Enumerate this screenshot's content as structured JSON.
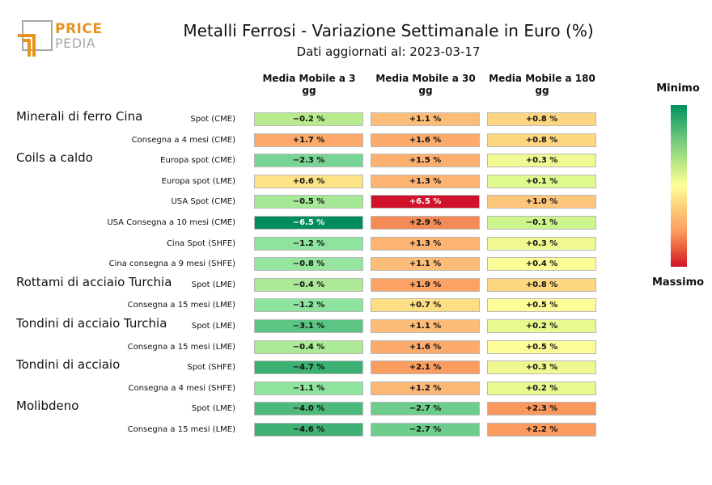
{
  "logo": {
    "word1": "PRICE",
    "word2": "PEDIA"
  },
  "chart_data": {
    "type": "table",
    "title": "Metalli Ferrosi - Variazione Settimanale in Euro (%)",
    "subtitle": "Dati aggiornati al: 2023-03-17",
    "columns": [
      "Media Mobile a 3 gg",
      "Media Mobile a 30 gg",
      "Media Mobile a 180 gg"
    ],
    "legend": {
      "top": "Minimo",
      "bottom": "Massimo"
    },
    "groups": [
      {
        "name": "Minerali di ferro Cina",
        "rows": [
          {
            "label": "Spot (CME)",
            "values": [
              "−0.2 %",
              "+1.1 %",
              "+0.8 %"
            ],
            "colors": [
              "#b8eb8e",
              "#fdbd78",
              "#fed67f"
            ]
          },
          {
            "label": "Consegna a 4 mesi (CME)",
            "values": [
              "+1.7 %",
              "+1.6 %",
              "+0.8 %"
            ],
            "colors": [
              "#fca96b",
              "#fcab6c",
              "#fed67f"
            ]
          }
        ]
      },
      {
        "name": "Coils a caldo",
        "rows": [
          {
            "label": "Europa spot (CME)",
            "values": [
              "−2.3 %",
              "+1.5 %",
              "+0.3 %"
            ],
            "colors": [
              "#78d495",
              "#fcb06e",
              "#f0f991"
            ]
          },
          {
            "label": "Europa spot (LME)",
            "values": [
              "+0.6 %",
              "+1.3 %",
              "+0.1 %"
            ],
            "colors": [
              "#fee386",
              "#fdb472",
              "#defa8f"
            ]
          },
          {
            "label": "USA Spot (CME)",
            "values": [
              "−0.5 %",
              "+6.5 %",
              "+1.0 %"
            ],
            "colors": [
              "#a5e997",
              "#d0132a",
              "#fec67b"
            ]
          },
          {
            "label": "USA Consegna a 10 mesi (CME)",
            "values": [
              "−6.5 %",
              "+2.9 %",
              "−0.1 %"
            ],
            "colors": [
              "#008c5c",
              "#f48b57",
              "#ccf58e"
            ]
          },
          {
            "label": "Cina Spot (SHFE)",
            "values": [
              "−1.2 %",
              "+1.3 %",
              "+0.3 %"
            ],
            "colors": [
              "#8ee39e",
              "#fdb472",
              "#f0f991"
            ]
          },
          {
            "label": "Cina consegna a 9 mesi (SHFE)",
            "values": [
              "−0.8 %",
              "+1.1 %",
              "+0.4 %"
            ],
            "colors": [
              "#96e59e",
              "#fdbd78",
              "#fbfd97"
            ]
          }
        ]
      },
      {
        "name": "Rottami di acciaio Turchia",
        "rows": [
          {
            "label": "Spot (LME)",
            "values": [
              "−0.4 %",
              "+1.9 %",
              "+0.8 %"
            ],
            "colors": [
              "#acea97",
              "#fca264",
              "#fed67f"
            ]
          },
          {
            "label": "Consegna a 15 mesi (LME)",
            "values": [
              "−1.2 %",
              "+0.7 %",
              "+0.5 %"
            ],
            "colors": [
              "#8ee39e",
              "#fede84",
              "#fefc98"
            ]
          }
        ]
      },
      {
        "name": "Tondini di acciaio Turchia",
        "rows": [
          {
            "label": "Spot (LME)",
            "values": [
              "−3.1 %",
              "+1.1 %",
              "+0.2 %"
            ],
            "colors": [
              "#5cc584",
              "#fdbd78",
              "#e6fa90"
            ]
          },
          {
            "label": "Consegna a 15 mesi (LME)",
            "values": [
              "−0.4 %",
              "+1.6 %",
              "+0.5 %"
            ],
            "colors": [
              "#acea97",
              "#fcab6c",
              "#fefc98"
            ]
          }
        ]
      },
      {
        "name": "Tondini di acciaio",
        "rows": [
          {
            "label": "Spot (SHFE)",
            "values": [
              "−4.7 %",
              "+2.1 %",
              "+0.3 %"
            ],
            "colors": [
              "#3cb072",
              "#fb9d61",
              "#f0f991"
            ]
          },
          {
            "label": "Consegna a 4 mesi (SHFE)",
            "values": [
              "−1.1 %",
              "+1.2 %",
              "+0.2 %"
            ],
            "colors": [
              "#8ee39e",
              "#fdb775",
              "#e6fa90"
            ]
          }
        ]
      },
      {
        "name": "Molibdeno",
        "rows": [
          {
            "label": "Spot (LME)",
            "values": [
              "−4.0 %",
              "−2.7 %",
              "+2.3 %"
            ],
            "colors": [
              "#4db97b",
              "#6ccd8c",
              "#fa985e"
            ]
          },
          {
            "label": "Consegna a 15 mesi (LME)",
            "values": [
              "−4.6 %",
              "−2.7 %",
              "+2.2 %"
            ],
            "colors": [
              "#3fb174",
              "#6ccd8c",
              "#fb9b60"
            ]
          }
        ]
      }
    ]
  }
}
